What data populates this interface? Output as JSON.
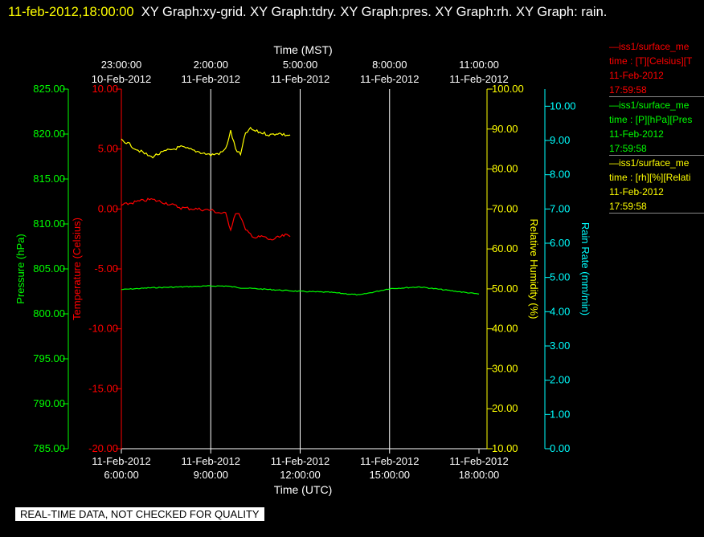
{
  "header": {
    "timestamp": "11-feb-2012,18:00:00",
    "graphs": "XY Graph:xy-grid.  XY Graph:tdry.  XY Graph:pres.  XY Graph:rh.  XY Graph: rain."
  },
  "legend": [
    {
      "title": "—iss1/surface_me",
      "field": "time : [T][Celsius][T",
      "date": "11-Feb-2012",
      "time": "17:59:58",
      "color": "#ff0000"
    },
    {
      "title": "—iss1/surface_me",
      "field": "time : [P][hPa][Pres",
      "date": "11-Feb-2012",
      "time": "17:59:58",
      "color": "#00ff00"
    },
    {
      "title": "—iss1/surface_me",
      "field": "time : [rh][%][Relati",
      "date": "11-Feb-2012",
      "time": "17:59:58",
      "color": "#ffff00"
    }
  ],
  "banner": "REAL-TIME DATA, NOT CHECKED FOR QUALITY",
  "chart_data": {
    "type": "line",
    "grid": true,
    "x_bottom": {
      "label": "Time (UTC)",
      "range": [
        "2012-02-11T06:00:00Z",
        "2012-02-11T18:00:00Z"
      ],
      "ticks": [
        {
          "at": "2012-02-11T06:00:00Z",
          "date": "11-Feb-2012",
          "time": "6:00:00"
        },
        {
          "at": "2012-02-11T09:00:00Z",
          "date": "11-Feb-2012",
          "time": "9:00:00"
        },
        {
          "at": "2012-02-11T12:00:00Z",
          "date": "11-Feb-2012",
          "time": "12:00:00"
        },
        {
          "at": "2012-02-11T15:00:00Z",
          "date": "11-Feb-2012",
          "time": "15:00:00"
        },
        {
          "at": "2012-02-11T18:00:00Z",
          "date": "11-Feb-2012",
          "time": "18:00:00"
        }
      ]
    },
    "x_top": {
      "label": "Time (MST)",
      "ticks": [
        {
          "at": "2012-02-10T23:00:00-07:00",
          "time": "23:00:00",
          "date": "10-Feb-2012"
        },
        {
          "at": "2012-02-11T02:00:00-07:00",
          "time": "2:00:00",
          "date": "11-Feb-2012"
        },
        {
          "at": "2012-02-11T05:00:00-07:00",
          "time": "5:00:00",
          "date": "11-Feb-2012"
        },
        {
          "at": "2012-02-11T08:00:00-07:00",
          "time": "8:00:00",
          "date": "11-Feb-2012"
        },
        {
          "at": "2012-02-11T11:00:00-07:00",
          "time": "11:00:00",
          "date": "11-Feb-2012"
        }
      ]
    },
    "y_axes": [
      {
        "id": "pressure",
        "label": "Pressure (hPa)",
        "color": "#00ff00",
        "range": [
          785,
          825
        ],
        "ticks": [
          785,
          790,
          795,
          800,
          805,
          810,
          815,
          820,
          825
        ]
      },
      {
        "id": "temperature",
        "label": "Temperature (Celsius)",
        "color": "#ff0000",
        "range": [
          -20,
          10
        ],
        "ticks": [
          -20,
          -15,
          -10,
          -5,
          0,
          5,
          10
        ]
      },
      {
        "id": "rh",
        "label": "Relative Humidity (%)",
        "color": "#ffff00",
        "range": [
          10,
          100
        ],
        "ticks": [
          10,
          20,
          30,
          40,
          50,
          60,
          70,
          80,
          90,
          100
        ]
      },
      {
        "id": "rain",
        "label": "Rain Rate (mm/min)",
        "color": "#00ffff",
        "range": [
          0,
          10.5
        ],
        "ticks": [
          0,
          1,
          2,
          3,
          4,
          5,
          6,
          7,
          8,
          9,
          10
        ]
      }
    ],
    "series": [
      {
        "axis": "pressure",
        "color": "#00ff00",
        "x": [
          "2012-02-11T06:00:00Z",
          "2012-02-11T07:00:00Z",
          "2012-02-11T08:00:00Z",
          "2012-02-11T09:00:00Z",
          "2012-02-11T09:30:00Z",
          "2012-02-11T10:00:00Z",
          "2012-02-11T11:00:00Z",
          "2012-02-11T12:00:00Z",
          "2012-02-11T13:00:00Z",
          "2012-02-11T14:00:00Z",
          "2012-02-11T15:00:00Z",
          "2012-02-11T16:00:00Z",
          "2012-02-11T17:00:00Z",
          "2012-02-11T18:00:00Z"
        ],
        "y": [
          802.7,
          802.9,
          803.0,
          803.1,
          803.1,
          802.9,
          802.7,
          802.5,
          802.4,
          802.1,
          802.8,
          803.0,
          802.6,
          802.2
        ]
      },
      {
        "axis": "temperature",
        "color": "#ff0000",
        "x": [
          "2012-02-11T06:00:00Z",
          "2012-02-11T06:30:00Z",
          "2012-02-11T07:00:00Z",
          "2012-02-11T07:30:00Z",
          "2012-02-11T08:00:00Z",
          "2012-02-11T08:30:00Z",
          "2012-02-11T09:00:00Z",
          "2012-02-11T09:15:00Z",
          "2012-02-11T09:30:00Z",
          "2012-02-11T09:40:00Z",
          "2012-02-11T09:50:00Z",
          "2012-02-11T10:00:00Z",
          "2012-02-11T10:10:00Z",
          "2012-02-11T10:20:00Z",
          "2012-02-11T10:30:00Z",
          "2012-02-11T10:45:00Z",
          "2012-02-11T11:00:00Z",
          "2012-02-11T11:15:00Z",
          "2012-02-11T11:30:00Z",
          "2012-02-11T11:40:00Z"
        ],
        "y": [
          0.3,
          0.6,
          0.8,
          0.5,
          0.1,
          0.0,
          -0.1,
          -0.3,
          -0.4,
          -1.7,
          -0.3,
          -0.6,
          -1.8,
          -2.1,
          -2.4,
          -2.3,
          -2.6,
          -2.4,
          -2.2,
          -2.3
        ]
      },
      {
        "axis": "rh",
        "color": "#ffff00",
        "x": [
          "2012-02-11T06:00:00Z",
          "2012-02-11T06:30:00Z",
          "2012-02-11T07:00:00Z",
          "2012-02-11T07:30:00Z",
          "2012-02-11T08:00:00Z",
          "2012-02-11T08:30:00Z",
          "2012-02-11T09:00:00Z",
          "2012-02-11T09:20:00Z",
          "2012-02-11T09:30:00Z",
          "2012-02-11T09:40:00Z",
          "2012-02-11T09:50:00Z",
          "2012-02-11T10:00:00Z",
          "2012-02-11T10:10:00Z",
          "2012-02-11T10:20:00Z",
          "2012-02-11T10:30:00Z",
          "2012-02-11T10:45:00Z",
          "2012-02-11T11:00:00Z",
          "2012-02-11T11:15:00Z",
          "2012-02-11T11:30:00Z",
          "2012-02-11T11:40:00Z"
        ],
        "y": [
          87.5,
          85.0,
          83.0,
          84.5,
          85.5,
          84.5,
          83.5,
          84.0,
          85.0,
          89.5,
          85.0,
          83.5,
          89.0,
          90.0,
          89.5,
          89.0,
          88.5,
          89.0,
          88.5,
          88.5
        ]
      }
    ]
  }
}
